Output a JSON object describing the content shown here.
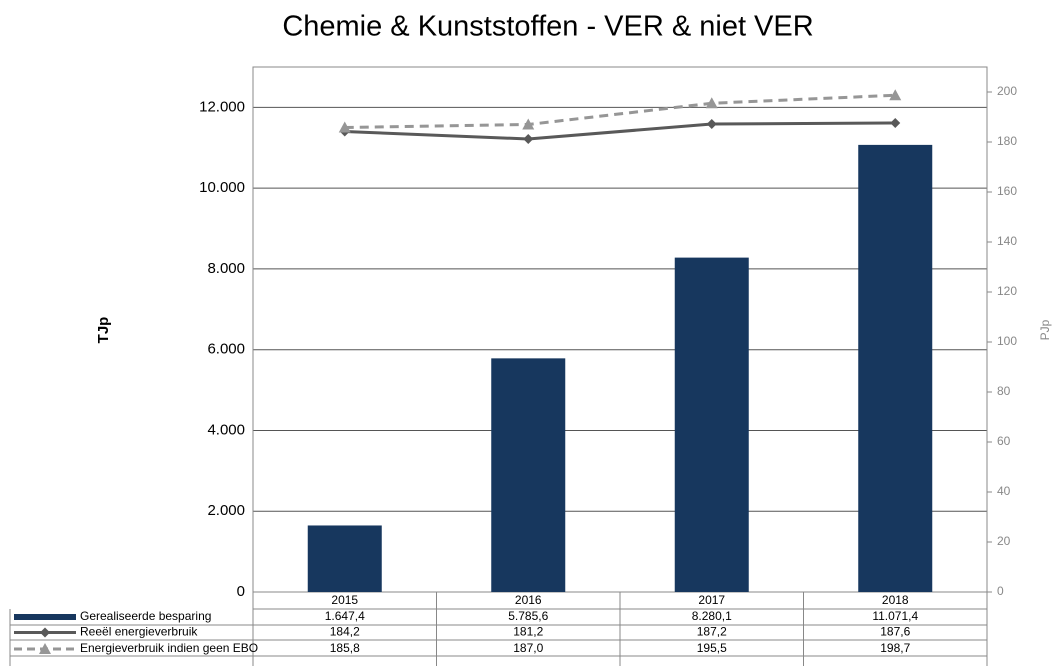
{
  "chart_data": {
    "type": "bar",
    "title": "Chemie & Kunststoffen  -  VER & niet VER",
    "y_label": "TJp",
    "y2_label": "PJp",
    "categories": [
      "2015",
      "2016",
      "2017",
      "2018"
    ],
    "ylim": [
      0,
      13000
    ],
    "yticks": [
      0,
      {
        "value": 2000,
        "label": "2.000"
      },
      {
        "value": 4000,
        "label": "4.000"
      },
      {
        "value": 6000,
        "label": "6.000"
      },
      {
        "value": 8000,
        "label": "8.000"
      },
      {
        "value": 10000,
        "label": "10.000"
      },
      {
        "value": 12000,
        "label": "12.000"
      }
    ],
    "y2lim": [
      0,
      210
    ],
    "y2ticks": [
      0,
      20,
      40,
      60,
      80,
      100,
      120,
      140,
      160,
      180,
      200
    ],
    "grid": true,
    "series": [
      {
        "name": "Gerealiseerde besparing",
        "type": "bar",
        "color": "#17375e",
        "values": [
          1647.4,
          5785.6,
          8280.1,
          11071.4
        ],
        "value_labels": [
          "1.647,4",
          "5.785,6",
          "8.280,1",
          "11.071,4"
        ]
      },
      {
        "name": "Reeël energieverbruik",
        "type": "line",
        "axis": "y2",
        "color": "#595959",
        "marker": "diamond",
        "values": [
          184.2,
          181.2,
          187.2,
          187.6
        ],
        "value_labels": [
          "184,2",
          "181,2",
          "187,2",
          "187,6"
        ]
      },
      {
        "name": "Energieverbruik indien geen EBO",
        "type": "line",
        "axis": "y2",
        "color": "#969696",
        "marker": "triangle",
        "dashed": true,
        "values": [
          185.8,
          187.0,
          195.5,
          198.7
        ],
        "value_labels": [
          "185,8",
          "187,0",
          "195,5",
          "198,7"
        ]
      }
    ]
  }
}
